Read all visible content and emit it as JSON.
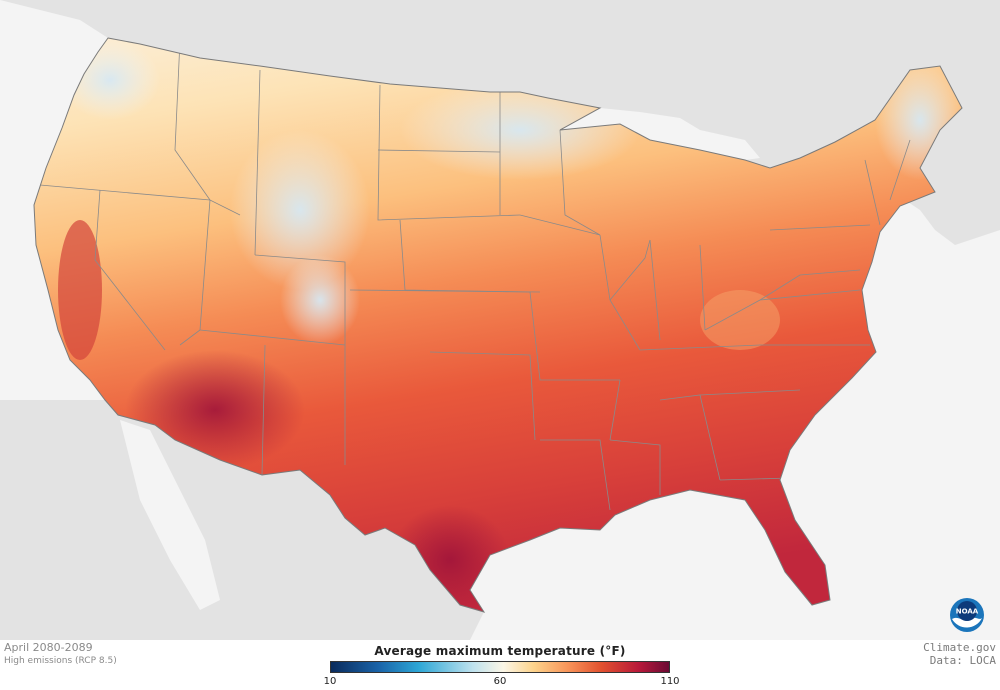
{
  "map": {
    "region": "contiguous-united-states",
    "land_color": "#e2e2e2",
    "water_color": "#f4f4f4",
    "state_border_color": "#8a8a8a"
  },
  "footer": {
    "period": "April 2080-2089",
    "scenario": "High emissions (RCP 8.5)",
    "credit": "Climate.gov",
    "source": "Data: LOCA"
  },
  "legend": {
    "title": "Average maximum temperature (°F)",
    "ticks": {
      "min": "10",
      "mid": "60",
      "max": "110"
    },
    "colors": [
      "#0a2b5c",
      "#1a63a8",
      "#2ea7d6",
      "#bfe2ee",
      "#fbf6e6",
      "#fdd38b",
      "#f8955a",
      "#e2512f",
      "#b8193a",
      "#6b0a34"
    ]
  },
  "logo": {
    "text": "NOAA",
    "icon": "noaa-logo-icon"
  }
}
